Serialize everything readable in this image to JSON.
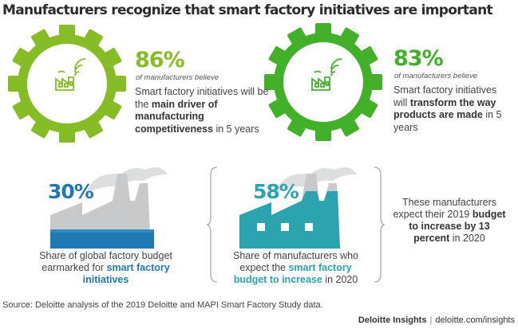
{
  "title": "Manufacturers recognize that smart factory initiatives are important",
  "colors": {
    "green_light": "#86bc25",
    "green_bright": "#43b02a",
    "blue_dark": "#1f77b4",
    "blue_mid": "#2e8bc0",
    "teal": "#2ba4b0",
    "factory_gray": "#c8c9cb"
  },
  "stat1": {
    "pct": "86%",
    "believe": "of manufacturers believe",
    "text_1": "Smart factory initiatives will be the ",
    "bold": "main driver of manufacturing competitiveness",
    "text_2": " in 5 years",
    "icon": "factory-wifi-icon"
  },
  "stat2": {
    "pct": "83%",
    "believe": "of manufacturers believe",
    "text_1": "Smart factory initiatives will ",
    "bold": "transform the way products are made",
    "text_2": " in 5 years",
    "icon": "factory-wifi-icon"
  },
  "stat3": {
    "pct": "30%",
    "cap_1": "Share of global factory budget earmarked for ",
    "bold": "smart factory initiatives",
    "cap_2": ""
  },
  "stat4": {
    "pct": "58%",
    "cap_1": "Share of manufacturers who expect the ",
    "bold": "smart factory budget to increase",
    "cap_2": " in 2020"
  },
  "side_note": {
    "text_1": "These manufacturers expect their 2019 ",
    "bold": "budget to increase by 13 percent",
    "text_2": " in 2020"
  },
  "source": "Source: Deloitte analysis of the 2019 Deloitte and MAPI Smart Factory Study data.",
  "footer": {
    "brand": "Deloitte Insights",
    "sep": "|",
    "url": "deloitte.com/insights"
  }
}
